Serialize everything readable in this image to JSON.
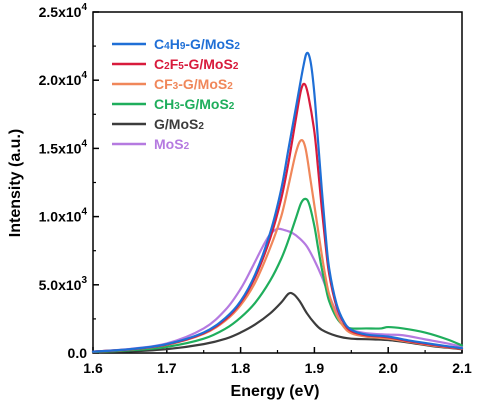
{
  "chart_data": {
    "type": "line",
    "xlabel": "Energy (eV)",
    "ylabel": "Intensity (a.u.)",
    "xlim": [
      1.6,
      2.1
    ],
    "ylim": [
      0,
      25000
    ],
    "x_ticks": [
      1.6,
      1.7,
      1.8,
      1.9,
      2.0,
      2.1
    ],
    "x_tick_labels": [
      "1.6",
      "1.7",
      "1.8",
      "1.9",
      "2.0",
      "2.1"
    ],
    "y_ticks": [
      0,
      5000,
      10000,
      15000,
      20000,
      25000
    ],
    "y_tick_mantissa": [
      "0.0",
      "5.0x10",
      "1.0x10",
      "1.5x10",
      "2.0x10",
      "2.5x10"
    ],
    "y_tick_exponent": [
      "",
      "3",
      "4",
      "4",
      "4",
      "4"
    ],
    "grid": false,
    "legend_position": "top-left",
    "series": [
      {
        "name": "C4H9-G/MoS2",
        "label_parts": [
          [
            "C",
            ""
          ],
          [
            "4",
            "sub"
          ],
          [
            "H",
            ""
          ],
          [
            "9",
            "sub"
          ],
          [
            "-G/MoS",
            ""
          ],
          [
            "2",
            "sub"
          ]
        ],
        "color": "#1f6fd6",
        "points": [
          [
            1.6,
            100
          ],
          [
            1.65,
            280
          ],
          [
            1.7,
            650
          ],
          [
            1.75,
            1500
          ],
          [
            1.78,
            2600
          ],
          [
            1.8,
            3800
          ],
          [
            1.82,
            5800
          ],
          [
            1.84,
            8800
          ],
          [
            1.855,
            12000
          ],
          [
            1.865,
            15000
          ],
          [
            1.875,
            18000
          ],
          [
            1.885,
            21000
          ],
          [
            1.89,
            22000
          ],
          [
            1.895,
            21300
          ],
          [
            1.9,
            19000
          ],
          [
            1.905,
            15500
          ],
          [
            1.91,
            12000
          ],
          [
            1.915,
            8800
          ],
          [
            1.92,
            6200
          ],
          [
            1.93,
            3600
          ],
          [
            1.94,
            2300
          ],
          [
            1.95,
            1700
          ],
          [
            1.97,
            1350
          ],
          [
            2.0,
            1200
          ],
          [
            2.03,
            900
          ],
          [
            2.06,
            650
          ],
          [
            2.1,
            350
          ]
        ]
      },
      {
        "name": "C2F5-G/MoS2",
        "label_parts": [
          [
            "C",
            ""
          ],
          [
            "2",
            "sub"
          ],
          [
            "F",
            ""
          ],
          [
            "5",
            "sub"
          ],
          [
            "-G/MoS",
            ""
          ],
          [
            "2",
            "sub"
          ]
        ],
        "color": "#d81b3c",
        "points": [
          [
            1.6,
            100
          ],
          [
            1.65,
            270
          ],
          [
            1.7,
            620
          ],
          [
            1.75,
            1450
          ],
          [
            1.78,
            2500
          ],
          [
            1.8,
            3700
          ],
          [
            1.82,
            5600
          ],
          [
            1.84,
            8400
          ],
          [
            1.855,
            11300
          ],
          [
            1.865,
            14000
          ],
          [
            1.875,
            17200
          ],
          [
            1.882,
            19300
          ],
          [
            1.887,
            19700
          ],
          [
            1.892,
            18800
          ],
          [
            1.9,
            16200
          ],
          [
            1.905,
            13500
          ],
          [
            1.91,
            10600
          ],
          [
            1.915,
            8000
          ],
          [
            1.92,
            5800
          ],
          [
            1.93,
            3400
          ],
          [
            1.94,
            2200
          ],
          [
            1.95,
            1600
          ],
          [
            1.97,
            1300
          ],
          [
            2.0,
            1150
          ],
          [
            2.03,
            850
          ],
          [
            2.06,
            600
          ],
          [
            2.1,
            320
          ]
        ]
      },
      {
        "name": "CF3-G/MoS2",
        "label_parts": [
          [
            "CF",
            ""
          ],
          [
            "3",
            "sub"
          ],
          [
            "-G/MoS",
            ""
          ],
          [
            "2",
            "sub"
          ]
        ],
        "color": "#f0875a",
        "points": [
          [
            1.6,
            100
          ],
          [
            1.65,
            260
          ],
          [
            1.7,
            600
          ],
          [
            1.75,
            1400
          ],
          [
            1.78,
            2400
          ],
          [
            1.8,
            3500
          ],
          [
            1.82,
            5200
          ],
          [
            1.84,
            7700
          ],
          [
            1.855,
            10000
          ],
          [
            1.865,
            12300
          ],
          [
            1.875,
            14700
          ],
          [
            1.882,
            15600
          ],
          [
            1.888,
            15000
          ],
          [
            1.895,
            12600
          ],
          [
            1.9,
            10800
          ],
          [
            1.905,
            9000
          ],
          [
            1.91,
            7200
          ],
          [
            1.915,
            5600
          ],
          [
            1.92,
            4300
          ],
          [
            1.93,
            2800
          ],
          [
            1.94,
            1900
          ],
          [
            1.95,
            1450
          ],
          [
            1.97,
            1200
          ],
          [
            2.0,
            1050
          ],
          [
            2.03,
            800
          ],
          [
            2.06,
            550
          ],
          [
            2.1,
            300
          ]
        ]
      },
      {
        "name": "CH3-G/MoS2",
        "label_parts": [
          [
            "CH",
            ""
          ],
          [
            "3",
            "sub"
          ],
          [
            "-G/MoS",
            ""
          ],
          [
            "2",
            "sub"
          ]
        ],
        "color": "#1fae5c",
        "points": [
          [
            1.6,
            80
          ],
          [
            1.65,
            200
          ],
          [
            1.7,
            450
          ],
          [
            1.75,
            1050
          ],
          [
            1.78,
            1800
          ],
          [
            1.8,
            2600
          ],
          [
            1.82,
            3700
          ],
          [
            1.84,
            5300
          ],
          [
            1.855,
            6900
          ],
          [
            1.865,
            8300
          ],
          [
            1.875,
            9900
          ],
          [
            1.882,
            11000
          ],
          [
            1.888,
            11300
          ],
          [
            1.893,
            10900
          ],
          [
            1.9,
            9300
          ],
          [
            1.905,
            7700
          ],
          [
            1.91,
            6200
          ],
          [
            1.915,
            4900
          ],
          [
            1.92,
            3800
          ],
          [
            1.93,
            2600
          ],
          [
            1.94,
            2000
          ],
          [
            1.95,
            1800
          ],
          [
            1.97,
            1800
          ],
          [
            1.99,
            1800
          ],
          [
            2.0,
            1900
          ],
          [
            2.02,
            1800
          ],
          [
            2.05,
            1500
          ],
          [
            2.08,
            1000
          ],
          [
            2.1,
            550
          ]
        ]
      },
      {
        "name": "G/MoS2",
        "label_parts": [
          [
            "G/MoS",
            ""
          ],
          [
            "2",
            "sub"
          ]
        ],
        "color": "#3c3c3c",
        "points": [
          [
            1.6,
            50
          ],
          [
            1.65,
            120
          ],
          [
            1.7,
            280
          ],
          [
            1.75,
            650
          ],
          [
            1.78,
            1050
          ],
          [
            1.8,
            1500
          ],
          [
            1.82,
            2100
          ],
          [
            1.84,
            2900
          ],
          [
            1.855,
            3700
          ],
          [
            1.865,
            4350
          ],
          [
            1.872,
            4300
          ],
          [
            1.88,
            3800
          ],
          [
            1.89,
            2900
          ],
          [
            1.9,
            2200
          ],
          [
            1.91,
            1700
          ],
          [
            1.93,
            1250
          ],
          [
            1.95,
            1050
          ],
          [
            1.98,
            1000
          ],
          [
            2.0,
            950
          ],
          [
            2.03,
            750
          ],
          [
            2.06,
            500
          ],
          [
            2.1,
            280
          ]
        ]
      },
      {
        "name": "MoS2",
        "label_parts": [
          [
            "MoS",
            ""
          ],
          [
            "2",
            "sub"
          ]
        ],
        "color": "#b57ae0",
        "points": [
          [
            1.6,
            100
          ],
          [
            1.65,
            300
          ],
          [
            1.7,
            700
          ],
          [
            1.75,
            1800
          ],
          [
            1.78,
            3200
          ],
          [
            1.8,
            4700
          ],
          [
            1.815,
            6200
          ],
          [
            1.83,
            7800
          ],
          [
            1.84,
            8700
          ],
          [
            1.85,
            9100
          ],
          [
            1.86,
            9000
          ],
          [
            1.87,
            8800
          ],
          [
            1.88,
            8400
          ],
          [
            1.89,
            7800
          ],
          [
            1.9,
            6800
          ],
          [
            1.91,
            5600
          ],
          [
            1.92,
            4200
          ],
          [
            1.93,
            3000
          ],
          [
            1.94,
            2200
          ],
          [
            1.95,
            1700
          ],
          [
            1.97,
            1450
          ],
          [
            2.0,
            1350
          ],
          [
            2.02,
            1300
          ],
          [
            2.05,
            1000
          ],
          [
            2.08,
            700
          ],
          [
            2.1,
            450
          ]
        ]
      }
    ]
  }
}
